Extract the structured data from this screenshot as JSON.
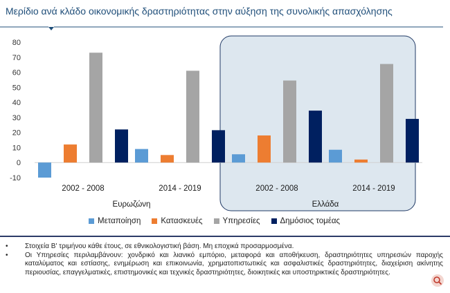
{
  "title": "Μερίδιο ανά κλάδο οικονομικής δραστηριότητας στην αύξηση της συνολικής απασχόλησης",
  "chart_data": {
    "type": "bar",
    "categories": [
      "2002 -  2008",
      "2014 -  2019",
      "2002 -  2008",
      "2014 -  2019"
    ],
    "groups": [
      {
        "label": "Ευρωζώνη",
        "categories": [
          0,
          1
        ],
        "highlighted": false
      },
      {
        "label": "Ελλάδα",
        "categories": [
          2,
          3
        ],
        "highlighted": true
      }
    ],
    "series": [
      {
        "name": "Μεταποίηση",
        "color": "#5b9bd5",
        "values": [
          -10,
          9,
          5.5,
          8.5
        ]
      },
      {
        "name": "Κατασκευές",
        "color": "#ed7d31",
        "values": [
          12,
          5,
          18,
          2
        ]
      },
      {
        "name": "Υπηρεσίες",
        "color": "#a5a5a5",
        "values": [
          73,
          61,
          54.5,
          65.5
        ]
      },
      {
        "name": "Δημόσιος τομέας",
        "color": "#002060",
        "values": [
          22,
          21.5,
          34.5,
          29
        ]
      }
    ],
    "yticks": [
      -10,
      0,
      10,
      20,
      30,
      40,
      50,
      60,
      70,
      80
    ],
    "ylim": [
      -10,
      80
    ],
    "grid": false,
    "legend_position": "bottom"
  },
  "notes": {
    "bullet": "•",
    "items": [
      "Στοιχεία Β' τριμήνου κάθε έτους, σε εθνικολογιστική βάση. Μη εποχικά προσαρμοσμένα.",
      "Οι Υπηρεσίες περιλαμβάνουν: χονδρικό και λιανικό εμπόριο, μεταφορά και αποθήκευση, δραστηριότητες υπηρεσιών παροχής καταλύματος και εστίασης, ενημέρωση και επικοινωνία, χρηματοπιστωτικές και ασφαλιστικές δραστηριότητες, διαχείριση ακίνητης περιουσίας, επαγγελματικές, επιστημονικές και τεχνικές δραστηριότητες, διοικητικές και υποστηρικτικές δραστηριότητες."
    ]
  },
  "colors": {
    "title": "#1f4e79",
    "highlight_fill": "#dde7ef",
    "highlight_stroke": "#1f3864",
    "divider": "#2b3a67"
  },
  "icons": {
    "watermark": "magnifier-badge-icon"
  }
}
